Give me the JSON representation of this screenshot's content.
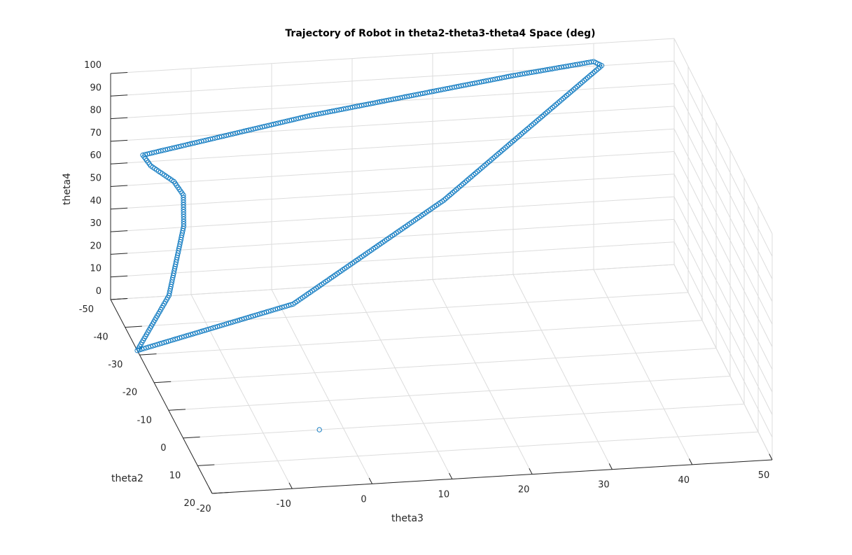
{
  "chart_data": {
    "type": "scatter",
    "dimensions": 3,
    "title": "Trajectory of Robot in theta2-theta3-theta4 Space (deg)",
    "xlabel": "theta3",
    "ylabel": "theta2",
    "zlabel": "theta4",
    "xlim": [
      -20,
      50
    ],
    "ylim": [
      -50,
      20
    ],
    "zlim": [
      0,
      100
    ],
    "xticks": [
      "-20",
      "-10",
      "0",
      "10",
      "20",
      "30",
      "40",
      "50"
    ],
    "yticks": [
      "-50",
      "-40",
      "-30",
      "-20",
      "-10",
      "0",
      "10",
      "20"
    ],
    "zticks": [
      "0",
      "10",
      "20",
      "30",
      "40",
      "50",
      "60",
      "70",
      "80",
      "90",
      "100"
    ],
    "grid": true,
    "marker": "circle",
    "marker_color": "#0072BD",
    "series": [
      {
        "keypoints": [
          {
            "theta3": -20.0,
            "theta2": -31.6,
            "theta4": 0.0
          },
          {
            "theta3": -15.0,
            "theta2": -37.5,
            "theta4": 16.0
          },
          {
            "theta3": -12.0,
            "theta2": -44.0,
            "theta4": 38.0
          },
          {
            "theta3": -11.5,
            "theta2": -47.0,
            "theta4": 48.0
          },
          {
            "theta3": -12.5,
            "theta2": -48.0,
            "theta4": 53.0
          },
          {
            "theta3": -15.0,
            "theta2": -50.0,
            "theta4": 58.0
          },
          {
            "theta3": -16.0,
            "theta2": -50.0,
            "theta4": 63.0
          },
          {
            "theta3": 5.0,
            "theta2": -50.0,
            "theta4": 76.0
          },
          {
            "theta3": 30.0,
            "theta2": -50.0,
            "theta4": 88.0
          },
          {
            "theta3": 40.0,
            "theta2": -50.0,
            "theta4": 92.0
          },
          {
            "theta3": 41.0,
            "theta2": -50.0,
            "theta4": 90.0
          },
          {
            "theta3": 20.0,
            "theta2": -42.0,
            "theta4": 45.0
          },
          {
            "theta3": 0.0,
            "theta2": -35.0,
            "theta4": 12.0
          },
          {
            "theta3": -20.0,
            "theta2": -31.6,
            "theta4": 0.0
          }
        ]
      },
      {
        "points": [
          {
            "theta3": -3.0,
            "theta2": 0.0,
            "theta4": 0.0
          }
        ]
      }
    ]
  }
}
